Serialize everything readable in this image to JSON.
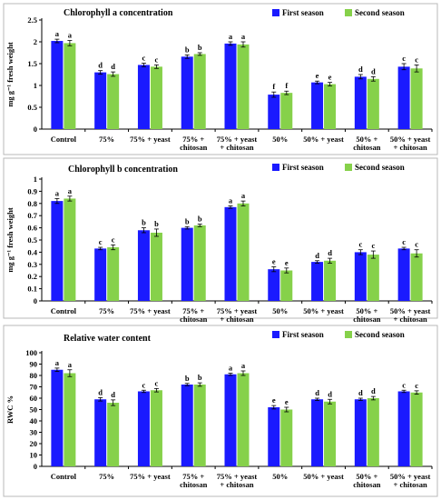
{
  "chart_data": [
    {
      "type": "bar",
      "title": "Chlorophyll  a concentration",
      "ylabel": "mg g⁻¹ fresh weight",
      "ylim": [
        0,
        2.5
      ],
      "yticks": [
        "0",
        "0.5",
        "1",
        "1.5",
        "2",
        "2.5"
      ],
      "categories": [
        "Control",
        "75%",
        "75% + yeast",
        "75% +\nchitosan",
        "75% + yeast\n+ chitosan",
        "50%",
        "50% + yeast",
        "50% +\nchitosan",
        "50% + yeast\n+ chitosan"
      ],
      "series": [
        {
          "name": "First season",
          "color": "#1a1aff",
          "values": [
            2.02,
            1.3,
            1.47,
            1.66,
            1.96,
            0.79,
            1.07,
            1.2,
            1.43
          ],
          "errors": [
            0.04,
            0.04,
            0.04,
            0.04,
            0.04,
            0.06,
            0.03,
            0.05,
            0.07
          ],
          "letters": [
            "a",
            "d",
            "c",
            "b",
            "a",
            "f",
            "e",
            "d",
            "c"
          ]
        },
        {
          "name": "Second season",
          "color": "#86d14a",
          "values": [
            1.97,
            1.26,
            1.43,
            1.72,
            1.94,
            0.83,
            1.03,
            1.15,
            1.39
          ],
          "errors": [
            0.06,
            0.05,
            0.04,
            0.03,
            0.06,
            0.04,
            0.04,
            0.05,
            0.08
          ],
          "letters": [
            "a",
            "d",
            "c",
            "b",
            "a",
            "f",
            "e",
            "d",
            "c"
          ]
        }
      ],
      "legend": "top-right"
    },
    {
      "type": "bar",
      "title": "Chlorophyll b concentration",
      "ylabel": "mg g⁻¹ fresh weight",
      "ylim": [
        0,
        1
      ],
      "yticks": [
        "0",
        "0.1",
        "0.2",
        "0.3",
        "0.4",
        "0.5",
        "0.6",
        "0.7",
        "0.8",
        "0.9",
        "1"
      ],
      "categories": [
        "Control",
        "75%",
        "75% + yeast",
        "75% +\nchitosan",
        "75% + yeast\n+ chitosan",
        "50%",
        "50% + yeast",
        "50% +\nchitosan",
        "50% + yeast\n+ chitosan"
      ],
      "series": [
        {
          "name": "First season",
          "color": "#1a1aff",
          "values": [
            0.82,
            0.43,
            0.58,
            0.6,
            0.77,
            0.26,
            0.32,
            0.4,
            0.43
          ],
          "errors": [
            0.02,
            0.01,
            0.02,
            0.01,
            0.01,
            0.02,
            0.01,
            0.02,
            0.01
          ],
          "letters": [
            "a",
            "c",
            "b",
            "b",
            "a",
            "e",
            "d",
            "c",
            "c"
          ]
        },
        {
          "name": "Second season",
          "color": "#86d14a",
          "values": [
            0.84,
            0.44,
            0.56,
            0.62,
            0.8,
            0.25,
            0.33,
            0.38,
            0.39
          ],
          "errors": [
            0.02,
            0.02,
            0.03,
            0.01,
            0.02,
            0.02,
            0.02,
            0.03,
            0.03
          ],
          "letters": [
            "a",
            "c",
            "b",
            "b",
            "a",
            "e",
            "d",
            "c",
            "c"
          ]
        }
      ],
      "legend": "top-right"
    },
    {
      "type": "bar",
      "title": "Relative water content",
      "ylabel": "RWC %",
      "ylim": [
        0,
        100
      ],
      "yticks": [
        "0",
        "10",
        "20",
        "30",
        "40",
        "50",
        "60",
        "70",
        "80",
        "90",
        "100"
      ],
      "categories": [
        "Control",
        "75%",
        "75% + yeast",
        "75% +\nchitosan",
        "75% + yeast\n+ chitosan",
        "50%",
        "50% + yeast",
        "50% +\nchitosan",
        "50% + yeast\n+ chitosan"
      ],
      "series": [
        {
          "name": "First season",
          "color": "#1a1aff",
          "values": [
            85,
            59,
            66,
            72,
            81,
            52,
            59,
            59,
            66
          ],
          "errors": [
            1.5,
            1.5,
            1,
            1,
            1,
            1.5,
            1,
            1,
            1
          ],
          "letters": [
            "a",
            "d",
            "c",
            "b",
            "a",
            "e",
            "d",
            "d",
            "c"
          ]
        },
        {
          "name": "Second season",
          "color": "#86d14a",
          "values": [
            82,
            56,
            67,
            72,
            82,
            50,
            57,
            60,
            65
          ],
          "errors": [
            3,
            2.5,
            1.5,
            1.5,
            2,
            2,
            2,
            1.5,
            1.5
          ],
          "letters": [
            "a",
            "d",
            "c",
            "b",
            "a",
            "e",
            "d",
            "d",
            "c"
          ]
        }
      ],
      "legend": "top-right"
    }
  ]
}
